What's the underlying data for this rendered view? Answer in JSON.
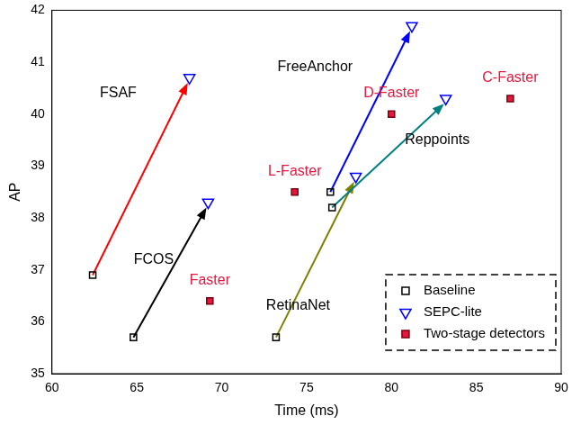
{
  "chart_data": {
    "type": "scatter",
    "x_label": "Time (ms)",
    "y_label": "AP",
    "xlim": [
      60,
      90
    ],
    "xticks": [
      60,
      65,
      70,
      75,
      80,
      85,
      90
    ],
    "ylim": [
      35,
      42
    ],
    "yticks": [
      35,
      36,
      37,
      38,
      39,
      40,
      41,
      42
    ],
    "grid": false,
    "legend": "lower right",
    "series": [
      {
        "name": "Baseline",
        "color": "#000000",
        "marker": "square_open",
        "x": [
          62.4,
          64.8,
          73.2,
          76.4,
          76.5
        ],
        "values": [
          36.9,
          35.7,
          35.7,
          38.5,
          38.2
        ]
      },
      {
        "name": "SEPC-lite",
        "color": "#0000ff",
        "marker": "triangle_down_open",
        "x": [
          68.1,
          69.2,
          77.9,
          81.2,
          83.2
        ],
        "values": [
          40.7,
          38.3,
          38.8,
          41.7,
          40.3
        ]
      },
      {
        "name": "Two-stage detectors",
        "color": "#e8163c",
        "marker": "square_filled",
        "x": [
          69.3,
          74.3,
          80.0,
          87.0
        ],
        "values": [
          36.4,
          38.5,
          40.0,
          40.3
        ]
      }
    ],
    "arrows": [
      {
        "color": "#ff0000",
        "x": [
          62.4,
          68.0
        ],
        "values": [
          36.9,
          40.6
        ]
      },
      {
        "color": "#000000",
        "x": [
          64.8,
          69.1
        ],
        "values": [
          35.7,
          38.2
        ]
      },
      {
        "color": "#808000",
        "x": [
          73.2,
          77.8
        ],
        "values": [
          35.7,
          38.7
        ]
      },
      {
        "color": "#0000ff",
        "x": [
          76.4,
          81.1
        ],
        "values": [
          38.5,
          41.6
        ]
      },
      {
        "color": "#008080",
        "x": [
          76.5,
          83.1
        ],
        "values": [
          38.2,
          40.2
        ]
      }
    ],
    "annotations": [
      {
        "text": "FSAF",
        "x": 63.9,
        "y": 40.4,
        "color": "#000000"
      },
      {
        "text": "FCOS",
        "x": 66.0,
        "y": 37.2,
        "color": "#000000"
      },
      {
        "text": "RetinaNet",
        "x": 74.5,
        "y": 36.3,
        "color": "#000000"
      },
      {
        "text": "FreeAnchor",
        "x": 75.5,
        "y": 40.9,
        "color": "#000000"
      },
      {
        "text": "Reppoints",
        "x": 82.7,
        "y": 39.5,
        "color": "#000000"
      },
      {
        "text": "Faster",
        "x": 69.3,
        "y": 36.8,
        "color": "#e8163c"
      },
      {
        "text": "L-Faster",
        "x": 74.3,
        "y": 38.9,
        "color": "#e8163c"
      },
      {
        "text": "D-Faster",
        "x": 80.0,
        "y": 40.4,
        "color": "#e8163c"
      },
      {
        "text": "C-Faster",
        "x": 87.0,
        "y": 40.7,
        "color": "#e8163c"
      }
    ]
  }
}
